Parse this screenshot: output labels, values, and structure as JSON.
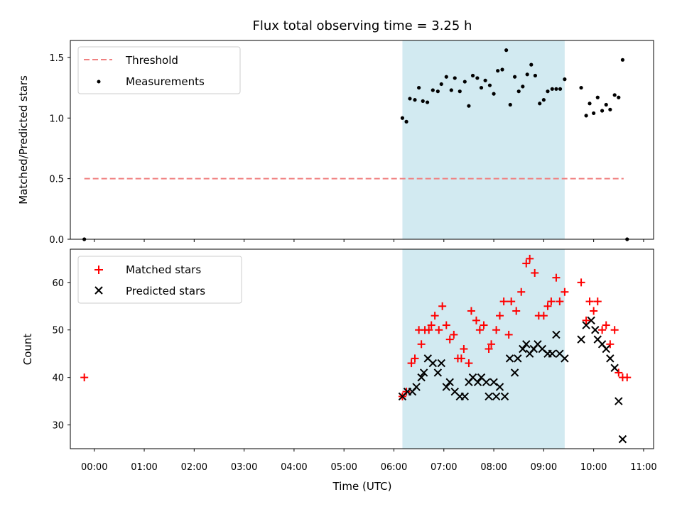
{
  "chart_data": {
    "type": "scatter",
    "title": "Flux total observing time = 3.25 h",
    "xlabel": "Time (UTC)",
    "x_ticks": [
      "00:00",
      "01:00",
      "02:00",
      "03:00",
      "04:00",
      "05:00",
      "06:00",
      "07:00",
      "08:00",
      "09:00",
      "10:00",
      "11:00"
    ],
    "x_range_hours": [
      -0.48,
      11.2
    ],
    "shaded_span_hours": [
      6.17,
      9.42
    ],
    "colors": {
      "threshold": "#f08080",
      "measurements": "#000000",
      "matched": "#ff0000",
      "predicted": "#000000",
      "shade": "#add8e6"
    },
    "top_panel": {
      "ylabel": "Matched/Predicted stars",
      "ylim": [
        0,
        1.64
      ],
      "yticks": [
        "0.0",
        "0.5",
        "1.0",
        "1.5"
      ],
      "threshold": {
        "value": 0.5,
        "x_start": -0.2,
        "x_end": 10.6
      },
      "legend": {
        "threshold_label": "Threshold",
        "measurements_label": "Measurements",
        "location": "upper-left"
      },
      "measurements": [
        [
          -0.2,
          0.0
        ],
        [
          6.17,
          1.0
        ],
        [
          6.25,
          0.97
        ],
        [
          6.32,
          1.16
        ],
        [
          6.42,
          1.15
        ],
        [
          6.5,
          1.25
        ],
        [
          6.58,
          1.14
        ],
        [
          6.67,
          1.13
        ],
        [
          6.78,
          1.23
        ],
        [
          6.88,
          1.22
        ],
        [
          6.95,
          1.28
        ],
        [
          7.05,
          1.34
        ],
        [
          7.15,
          1.23
        ],
        [
          7.22,
          1.33
        ],
        [
          7.32,
          1.22
        ],
        [
          7.42,
          1.3
        ],
        [
          7.5,
          1.1
        ],
        [
          7.58,
          1.35
        ],
        [
          7.67,
          1.33
        ],
        [
          7.75,
          1.25
        ],
        [
          7.83,
          1.31
        ],
        [
          7.92,
          1.27
        ],
        [
          8.0,
          1.2
        ],
        [
          8.08,
          1.39
        ],
        [
          8.17,
          1.4
        ],
        [
          8.25,
          1.56
        ],
        [
          8.33,
          1.11
        ],
        [
          8.42,
          1.34
        ],
        [
          8.5,
          1.22
        ],
        [
          8.58,
          1.26
        ],
        [
          8.67,
          1.36
        ],
        [
          8.75,
          1.44
        ],
        [
          8.83,
          1.35
        ],
        [
          8.92,
          1.12
        ],
        [
          9.0,
          1.15
        ],
        [
          9.08,
          1.22
        ],
        [
          9.17,
          1.24
        ],
        [
          9.25,
          1.24
        ],
        [
          9.33,
          1.24
        ],
        [
          9.42,
          1.32
        ],
        [
          9.75,
          1.25
        ],
        [
          9.85,
          1.02
        ],
        [
          9.92,
          1.12
        ],
        [
          10.0,
          1.04
        ],
        [
          10.08,
          1.17
        ],
        [
          10.17,
          1.06
        ],
        [
          10.25,
          1.11
        ],
        [
          10.33,
          1.07
        ],
        [
          10.42,
          1.19
        ],
        [
          10.5,
          1.17
        ],
        [
          10.58,
          1.48
        ],
        [
          10.67,
          0.0
        ]
      ]
    },
    "bottom_panel": {
      "ylabel": "Count",
      "ylim": [
        25,
        67
      ],
      "yticks": [
        "30",
        "40",
        "50",
        "60"
      ],
      "legend": {
        "matched_label": "Matched stars",
        "predicted_label": "Predicted stars",
        "location": "upper-left"
      },
      "matched": [
        [
          -0.2,
          40
        ],
        [
          6.17,
          36
        ],
        [
          6.25,
          37
        ],
        [
          6.35,
          43
        ],
        [
          6.42,
          44
        ],
        [
          6.5,
          50
        ],
        [
          6.55,
          47
        ],
        [
          6.62,
          50
        ],
        [
          6.7,
          50
        ],
        [
          6.75,
          51
        ],
        [
          6.82,
          53
        ],
        [
          6.9,
          50
        ],
        [
          6.97,
          55
        ],
        [
          7.05,
          51
        ],
        [
          7.12,
          48
        ],
        [
          7.2,
          49
        ],
        [
          7.28,
          44
        ],
        [
          7.35,
          44
        ],
        [
          7.4,
          46
        ],
        [
          7.5,
          43
        ],
        [
          7.55,
          54
        ],
        [
          7.65,
          52
        ],
        [
          7.72,
          50
        ],
        [
          7.8,
          51
        ],
        [
          7.9,
          46
        ],
        [
          7.95,
          47
        ],
        [
          8.05,
          50
        ],
        [
          8.12,
          53
        ],
        [
          8.2,
          56
        ],
        [
          8.3,
          49
        ],
        [
          8.35,
          56
        ],
        [
          8.45,
          54
        ],
        [
          8.55,
          58
        ],
        [
          8.65,
          64
        ],
        [
          8.72,
          65
        ],
        [
          8.82,
          62
        ],
        [
          8.9,
          53
        ],
        [
          9.0,
          53
        ],
        [
          9.08,
          55
        ],
        [
          9.15,
          56
        ],
        [
          9.25,
          61
        ],
        [
          9.32,
          56
        ],
        [
          9.42,
          58
        ],
        [
          9.75,
          60
        ],
        [
          9.85,
          52
        ],
        [
          9.92,
          56
        ],
        [
          10.0,
          54
        ],
        [
          10.08,
          56
        ],
        [
          10.17,
          50
        ],
        [
          10.25,
          51
        ],
        [
          10.33,
          47
        ],
        [
          10.42,
          50
        ],
        [
          10.5,
          41
        ],
        [
          10.58,
          40
        ],
        [
          10.67,
          40
        ]
      ],
      "predicted": [
        [
          6.17,
          36
        ],
        [
          6.27,
          37
        ],
        [
          6.37,
          37
        ],
        [
          6.45,
          38
        ],
        [
          6.55,
          40
        ],
        [
          6.6,
          41
        ],
        [
          6.68,
          44
        ],
        [
          6.78,
          43
        ],
        [
          6.88,
          41
        ],
        [
          6.95,
          43
        ],
        [
          7.05,
          38
        ],
        [
          7.12,
          39
        ],
        [
          7.22,
          37
        ],
        [
          7.32,
          36
        ],
        [
          7.42,
          36
        ],
        [
          7.5,
          39
        ],
        [
          7.58,
          40
        ],
        [
          7.68,
          39
        ],
        [
          7.75,
          40
        ],
        [
          7.85,
          39
        ],
        [
          7.9,
          36
        ],
        [
          8.0,
          39
        ],
        [
          8.05,
          36
        ],
        [
          8.12,
          38
        ],
        [
          8.22,
          36
        ],
        [
          8.32,
          44
        ],
        [
          8.42,
          41
        ],
        [
          8.48,
          44
        ],
        [
          8.58,
          46
        ],
        [
          8.65,
          47
        ],
        [
          8.72,
          45
        ],
        [
          8.8,
          46
        ],
        [
          8.88,
          47
        ],
        [
          8.97,
          46
        ],
        [
          9.08,
          45
        ],
        [
          9.17,
          45
        ],
        [
          9.25,
          49
        ],
        [
          9.32,
          45
        ],
        [
          9.42,
          44
        ],
        [
          9.75,
          48
        ],
        [
          9.85,
          51
        ],
        [
          9.95,
          52
        ],
        [
          10.03,
          50
        ],
        [
          10.08,
          48
        ],
        [
          10.17,
          47
        ],
        [
          10.25,
          46
        ],
        [
          10.33,
          44
        ],
        [
          10.42,
          42
        ],
        [
          10.5,
          35
        ],
        [
          10.58,
          27
        ]
      ]
    }
  }
}
